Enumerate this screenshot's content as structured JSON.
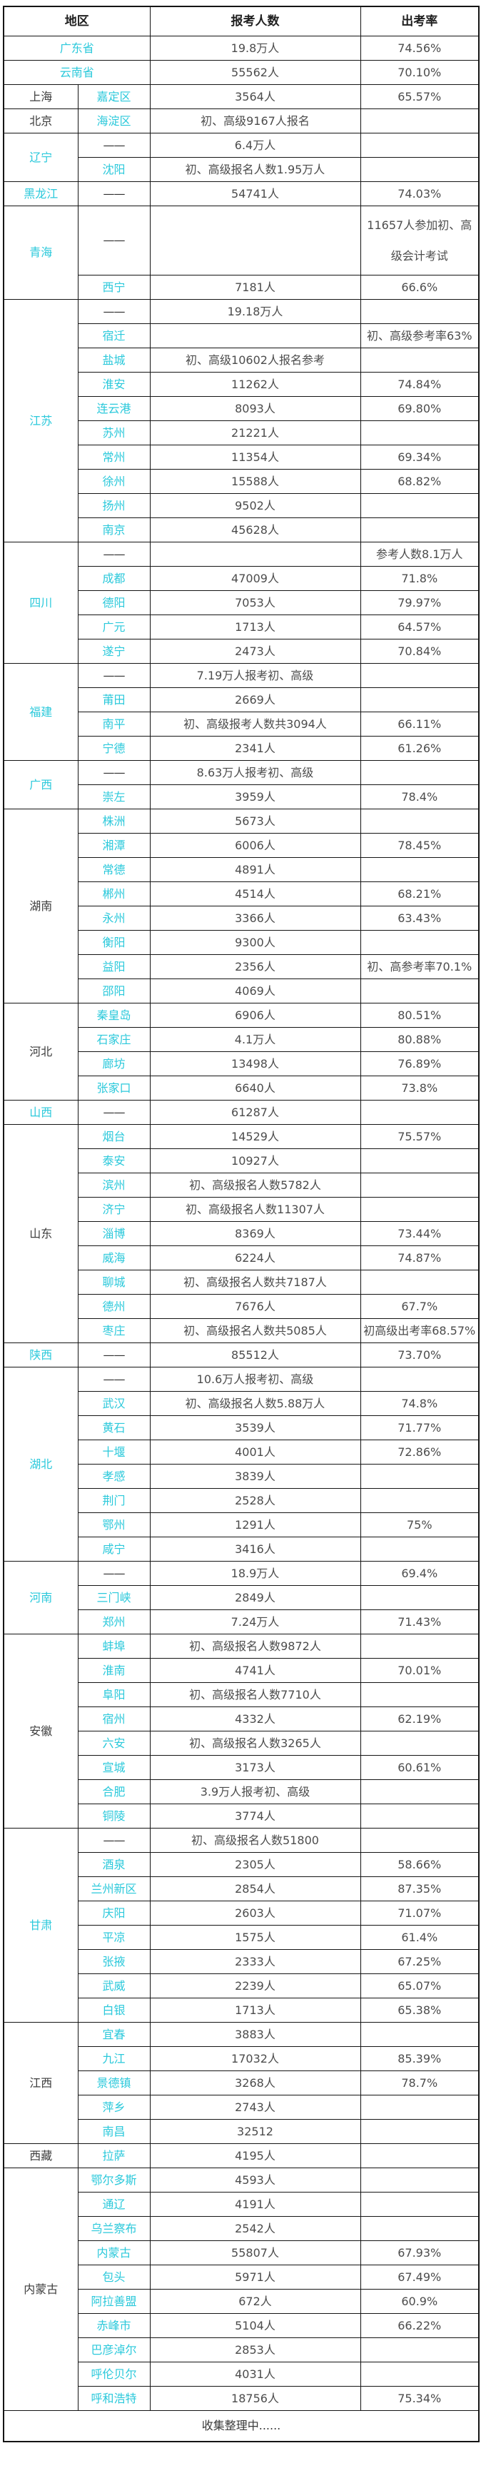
{
  "chart_data": {
    "type": "table",
    "columns": [
      "地区",
      "报考人数",
      "出考率"
    ],
    "footer": "收集整理中......",
    "accent_color": "#2bc9db",
    "border_color": "#141414",
    "dash": "——",
    "groups": [
      {
        "province": "广东省",
        "color": "accent",
        "merged": true,
        "rows": [
          {
            "city": "",
            "applicants": "19.8万人",
            "rate": "74.56%"
          }
        ]
      },
      {
        "province": "云南省",
        "color": "accent",
        "merged": true,
        "rows": [
          {
            "city": "",
            "applicants": "55562人",
            "rate": "70.10%"
          }
        ]
      },
      {
        "province": "上海",
        "color": "dark",
        "merged": false,
        "rows": [
          {
            "city": "嘉定区",
            "applicants": "3564人",
            "rate": "65.57%"
          }
        ]
      },
      {
        "province": "北京",
        "color": "dark",
        "merged": false,
        "rows": [
          {
            "city": "海淀区",
            "applicants": "初、高级9167人报名",
            "rate": ""
          }
        ]
      },
      {
        "province": "辽宁",
        "color": "accent",
        "merged": false,
        "rows": [
          {
            "city": "——",
            "applicants": "6.4万人",
            "rate": ""
          },
          {
            "city": "沈阳",
            "applicants": "初、高级报名人数1.95万人",
            "rate": ""
          }
        ]
      },
      {
        "province": "黑龙江",
        "color": "accent",
        "merged": false,
        "rows": [
          {
            "city": "——",
            "applicants": "54741人",
            "rate": "74.03%"
          }
        ]
      },
      {
        "province": "青海",
        "color": "accent",
        "merged": false,
        "rows": [
          {
            "city": "——",
            "applicants": "",
            "rate": "11657人参加初、高级会计考试",
            "tall": true
          },
          {
            "city": "西宁",
            "applicants": "7181人",
            "rate": "66.6%"
          }
        ]
      },
      {
        "province": "江苏",
        "color": "accent",
        "merged": false,
        "rows": [
          {
            "city": "——",
            "applicants": "19.18万人",
            "rate": ""
          },
          {
            "city": "宿迁",
            "applicants": "",
            "rate": "初、高级参考率63%"
          },
          {
            "city": "盐城",
            "applicants": "初、高级10602人报名参考",
            "rate": ""
          },
          {
            "city": "淮安",
            "applicants": "11262人",
            "rate": "74.84%"
          },
          {
            "city": "连云港",
            "applicants": "8093人",
            "rate": "69.80%"
          },
          {
            "city": "苏州",
            "applicants": "21221人",
            "rate": ""
          },
          {
            "city": "常州",
            "applicants": "11354人",
            "rate": "69.34%"
          },
          {
            "city": "徐州",
            "applicants": "15588人",
            "rate": "68.82%"
          },
          {
            "city": "扬州",
            "applicants": "9502人",
            "rate": ""
          },
          {
            "city": "南京",
            "applicants": "45628人",
            "rate": ""
          }
        ]
      },
      {
        "province": "四川",
        "color": "accent",
        "merged": false,
        "rows": [
          {
            "city": "——",
            "applicants": "",
            "rate": "参考人数8.1万人"
          },
          {
            "city": "成都",
            "applicants": "47009人",
            "rate": "71.8%"
          },
          {
            "city": "德阳",
            "applicants": "7053人",
            "rate": "79.97%"
          },
          {
            "city": "广元",
            "applicants": "1713人",
            "rate": "64.57%"
          },
          {
            "city": "遂宁",
            "applicants": "2473人",
            "rate": "70.84%"
          }
        ]
      },
      {
        "province": "福建",
        "color": "accent",
        "merged": false,
        "rows": [
          {
            "city": "——",
            "applicants": "7.19万人报考初、高级",
            "rate": ""
          },
          {
            "city": "莆田",
            "applicants": "2669人",
            "rate": ""
          },
          {
            "city": "南平",
            "applicants": "初、高级报考人数共3094人",
            "rate": "66.11%"
          },
          {
            "city": "宁德",
            "applicants": "2341人",
            "rate": "61.26%"
          }
        ]
      },
      {
        "province": "广西",
        "color": "accent",
        "merged": false,
        "rows": [
          {
            "city": "——",
            "applicants": "8.63万人报考初、高级",
            "rate": ""
          },
          {
            "city": "崇左",
            "applicants": "3959人",
            "rate": "78.4%"
          }
        ]
      },
      {
        "province": "湖南",
        "color": "dark",
        "merged": false,
        "rows": [
          {
            "city": "株洲",
            "applicants": "5673人",
            "rate": ""
          },
          {
            "city": "湘潭",
            "applicants": "6006人",
            "rate": "78.45%"
          },
          {
            "city": "常德",
            "applicants": "4891人",
            "rate": ""
          },
          {
            "city": "郴州",
            "applicants": "4514人",
            "rate": "68.21%"
          },
          {
            "city": "永州",
            "applicants": "3366人",
            "rate": "63.43%"
          },
          {
            "city": "衡阳",
            "applicants": "9300人",
            "rate": ""
          },
          {
            "city": "益阳",
            "applicants": "2356人",
            "rate": "初、高参考率70.1%"
          },
          {
            "city": "邵阳",
            "applicants": "4069人",
            "rate": ""
          }
        ]
      },
      {
        "province": "河北",
        "color": "dark",
        "merged": false,
        "rows": [
          {
            "city": "秦皇岛",
            "applicants": "6906人",
            "rate": "80.51%"
          },
          {
            "city": "石家庄",
            "applicants": "4.1万人",
            "rate": "80.88%"
          },
          {
            "city": "廊坊",
            "applicants": "13498人",
            "rate": "76.89%"
          },
          {
            "city": "张家口",
            "applicants": "6640人",
            "rate": "73.8%"
          }
        ]
      },
      {
        "province": "山西",
        "color": "accent",
        "merged": false,
        "rows": [
          {
            "city": "——",
            "applicants": "61287人",
            "rate": ""
          }
        ]
      },
      {
        "province": "山东",
        "color": "dark",
        "merged": false,
        "rows": [
          {
            "city": "烟台",
            "applicants": "14529人",
            "rate": "75.57%"
          },
          {
            "city": "泰安",
            "applicants": "10927人",
            "rate": ""
          },
          {
            "city": "滨州",
            "applicants": "初、高级报名人数5782人",
            "rate": ""
          },
          {
            "city": "济宁",
            "applicants": "初、高级报名人数11307人",
            "rate": ""
          },
          {
            "city": "淄博",
            "applicants": "8369人",
            "rate": "73.44%"
          },
          {
            "city": "威海",
            "applicants": "6224人",
            "rate": "74.87%"
          },
          {
            "city": "聊城",
            "applicants": "初、高级报名人数共7187人",
            "rate": ""
          },
          {
            "city": "德州",
            "applicants": "7676人",
            "rate": "67.7%"
          },
          {
            "city": "枣庄",
            "applicants": "初、高级报名人数共5085人",
            "rate": "初高级出考率68.57%"
          }
        ]
      },
      {
        "province": "陕西",
        "color": "accent",
        "merged": false,
        "rows": [
          {
            "city": "——",
            "applicants": "85512人",
            "rate": "73.70%"
          }
        ]
      },
      {
        "province": "湖北",
        "color": "accent",
        "merged": false,
        "rows": [
          {
            "city": "——",
            "applicants": "10.6万人报考初、高级",
            "rate": ""
          },
          {
            "city": "武汉",
            "applicants": "初、高级报名人数5.88万人",
            "rate": "74.8%"
          },
          {
            "city": "黄石",
            "applicants": "3539人",
            "rate": "71.77%"
          },
          {
            "city": "十堰",
            "applicants": "4001人",
            "rate": "72.86%"
          },
          {
            "city": "孝感",
            "applicants": "3839人",
            "rate": ""
          },
          {
            "city": "荆门",
            "applicants": "2528人",
            "rate": ""
          },
          {
            "city": "鄂州",
            "applicants": "1291人",
            "rate": "75%"
          },
          {
            "city": "咸宁",
            "applicants": "3416人",
            "rate": ""
          }
        ]
      },
      {
        "province": "河南",
        "color": "accent",
        "merged": false,
        "rows": [
          {
            "city": "——",
            "applicants": "18.9万人",
            "rate": "69.4%"
          },
          {
            "city": "三门峡",
            "applicants": "2849人",
            "rate": ""
          },
          {
            "city": "郑州",
            "applicants": "7.24万人",
            "rate": "71.43%"
          }
        ]
      },
      {
        "province": "安徽",
        "color": "dark",
        "merged": false,
        "rows": [
          {
            "city": "蚌埠",
            "applicants": "初、高级报名人数9872人",
            "rate": ""
          },
          {
            "city": "淮南",
            "applicants": "4741人",
            "rate": "70.01%"
          },
          {
            "city": "阜阳",
            "applicants": "初、高级报名人数7710人",
            "rate": ""
          },
          {
            "city": "宿州",
            "applicants": "4332人",
            "rate": "62.19%"
          },
          {
            "city": "六安",
            "applicants": "初、高级报名人数3265人",
            "rate": ""
          },
          {
            "city": "宣城",
            "applicants": "3173人",
            "rate": "60.61%"
          },
          {
            "city": "合肥",
            "applicants": "3.9万人报考初、高级",
            "rate": ""
          },
          {
            "city": "铜陵",
            "applicants": "3774人",
            "rate": ""
          }
        ]
      },
      {
        "province": "甘肃",
        "color": "accent",
        "merged": false,
        "rows": [
          {
            "city": "——",
            "applicants": "初、高级报名人数51800",
            "rate": ""
          },
          {
            "city": "酒泉",
            "applicants": "2305人",
            "rate": "58.66%"
          },
          {
            "city": "兰州新区",
            "applicants": "2854人",
            "rate": "87.35%"
          },
          {
            "city": "庆阳",
            "applicants": "2603人",
            "rate": "71.07%"
          },
          {
            "city": "平凉",
            "applicants": "1575人",
            "rate": "61.4%"
          },
          {
            "city": "张掖",
            "applicants": "2333人",
            "rate": "67.25%"
          },
          {
            "city": "武威",
            "applicants": "2239人",
            "rate": "65.07%"
          },
          {
            "city": "白银",
            "applicants": "1713人",
            "rate": "65.38%"
          }
        ]
      },
      {
        "province": "江西",
        "color": "dark",
        "merged": false,
        "rows": [
          {
            "city": "宜春",
            "applicants": "3883人",
            "rate": ""
          },
          {
            "city": "九江",
            "applicants": "17032人",
            "rate": "85.39%"
          },
          {
            "city": "景德镇",
            "applicants": "3268人",
            "rate": "78.7%"
          },
          {
            "city": "萍乡",
            "applicants": "2743人",
            "rate": ""
          },
          {
            "city": "南昌",
            "applicants": "32512",
            "rate": ""
          }
        ]
      },
      {
        "province": "西藏",
        "color": "dark",
        "merged": false,
        "rows": [
          {
            "city": "拉萨",
            "applicants": "4195人",
            "rate": ""
          }
        ]
      },
      {
        "province": "内蒙古",
        "color": "dark",
        "merged": false,
        "rows": [
          {
            "city": "鄂尔多斯",
            "applicants": "4593人",
            "rate": ""
          },
          {
            "city": "通辽",
            "applicants": "4191人",
            "rate": ""
          },
          {
            "city": "乌兰察布",
            "applicants": "2542人",
            "rate": ""
          },
          {
            "city": "内蒙古",
            "applicants": "55807人",
            "rate": "67.93%"
          },
          {
            "city": "包头",
            "applicants": "5971人",
            "rate": "67.49%"
          },
          {
            "city": "阿拉善盟",
            "applicants": "672人",
            "rate": "60.9%"
          },
          {
            "city": "赤峰市",
            "applicants": "5104人",
            "rate": "66.22%"
          },
          {
            "city": "巴彦淖尔",
            "applicants": "2853人",
            "rate": ""
          },
          {
            "city": "呼伦贝尔",
            "applicants": "4031人",
            "rate": ""
          },
          {
            "city": "呼和浩特",
            "applicants": "18756人",
            "rate": "75.34%"
          }
        ]
      }
    ]
  }
}
